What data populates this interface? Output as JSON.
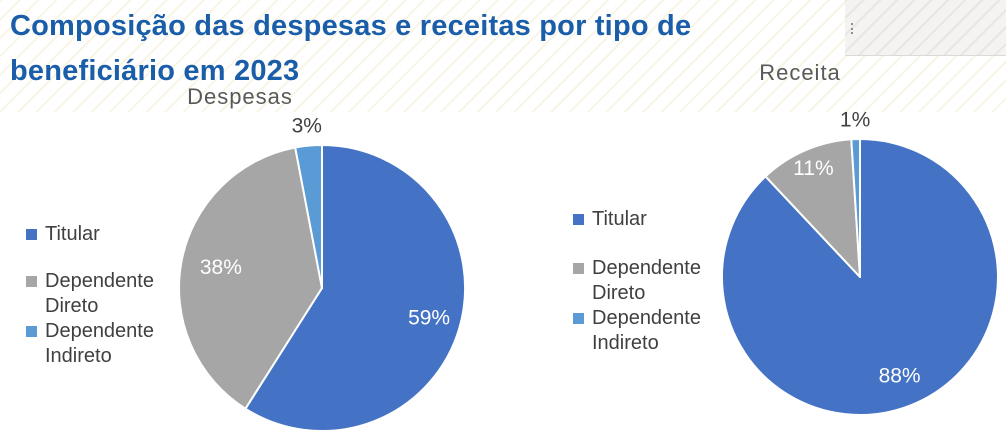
{
  "page": {
    "title_line1": "Composição das despesas e receitas por tipo de",
    "title_line2": "beneficiário em 2023",
    "title_color": "#1A5DA8"
  },
  "colors": {
    "titular_blue": "#4472C4",
    "dependente_direto_gray": "#A6A6A6",
    "dependente_indireto_lightblue": "#5B9BD5",
    "chart_title_gray": "#595959",
    "label_dark": "#404040",
    "label_light": "#FFFFFF"
  },
  "chart_data": [
    {
      "type": "pie",
      "title": "Despesas",
      "categories": [
        "Titular",
        "Dependente Direto",
        "Dependente Indireto"
      ],
      "values": [
        59,
        38,
        3
      ],
      "labels": [
        "59%",
        "38%",
        "3%"
      ],
      "colors": [
        "#4472C4",
        "#A6A6A6",
        "#5B9BD5"
      ],
      "start_angle_deg": 0,
      "direction": "clockwise",
      "legend_position": "left",
      "data_labels": "percent"
    },
    {
      "type": "pie",
      "title": "Receita",
      "categories": [
        "Titular",
        "Dependente Direto",
        "Dependente Indireto"
      ],
      "values": [
        88,
        11,
        1
      ],
      "labels": [
        "88%",
        "11%",
        "1%"
      ],
      "colors": [
        "#4472C4",
        "#A6A6A6",
        "#5B9BD5"
      ],
      "start_angle_deg": 0,
      "direction": "clockwise",
      "legend_position": "left",
      "data_labels": "percent"
    }
  ]
}
